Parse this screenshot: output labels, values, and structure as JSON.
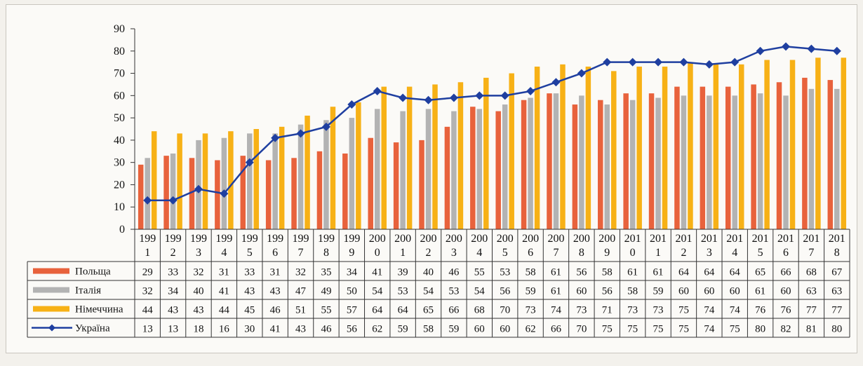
{
  "chart_data": {
    "type": "bar",
    "years": [
      "1991",
      "1992",
      "1993",
      "1994",
      "1995",
      "1996",
      "1997",
      "1998",
      "1999",
      "2000",
      "2001",
      "2002",
      "2003",
      "2004",
      "2005",
      "2006",
      "2007",
      "2008",
      "2009",
      "2010",
      "2011",
      "2012",
      "2013",
      "2014",
      "2015",
      "2016",
      "2017",
      "2018"
    ],
    "year_labels": [
      [
        "199",
        "1"
      ],
      [
        "199",
        "2"
      ],
      [
        "199",
        "3"
      ],
      [
        "199",
        "4"
      ],
      [
        "199",
        "5"
      ],
      [
        "199",
        "6"
      ],
      [
        "199",
        "7"
      ],
      [
        "199",
        "8"
      ],
      [
        "199",
        "9"
      ],
      [
        "200",
        "0"
      ],
      [
        "200",
        "1"
      ],
      [
        "200",
        "2"
      ],
      [
        "200",
        "3"
      ],
      [
        "200",
        "4"
      ],
      [
        "200",
        "5"
      ],
      [
        "200",
        "6"
      ],
      [
        "200",
        "7"
      ],
      [
        "200",
        "8"
      ],
      [
        "200",
        "9"
      ],
      [
        "201",
        "0"
      ],
      [
        "201",
        "1"
      ],
      [
        "201",
        "2"
      ],
      [
        "201",
        "3"
      ],
      [
        "201",
        "4"
      ],
      [
        "201",
        "5"
      ],
      [
        "201",
        "6"
      ],
      [
        "201",
        "7"
      ],
      [
        "201",
        "8"
      ]
    ],
    "ylim": [
      0,
      90
    ],
    "yticks": [
      "0",
      "10",
      "20",
      "30",
      "40",
      "50",
      "60",
      "70",
      "80",
      "90"
    ],
    "series": [
      {
        "name": "Польща",
        "type": "bar",
        "color": "#e8623c",
        "values": [
          29,
          33,
          32,
          31,
          33,
          31,
          32,
          35,
          34,
          41,
          39,
          40,
          46,
          55,
          53,
          58,
          61,
          56,
          58,
          61,
          61,
          64,
          64,
          64,
          65,
          66,
          68,
          67
        ]
      },
      {
        "name": "Італія",
        "type": "bar",
        "color": "#b3b3b3",
        "values": [
          32,
          34,
          40,
          41,
          43,
          43,
          47,
          49,
          50,
          54,
          53,
          54,
          53,
          54,
          56,
          59,
          61,
          60,
          56,
          58,
          59,
          60,
          60,
          60,
          61,
          60,
          63,
          63
        ]
      },
      {
        "name": "Німеччина",
        "type": "bar",
        "color": "#f7b116",
        "values": [
          44,
          43,
          43,
          44,
          45,
          46,
          51,
          55,
          57,
          64,
          64,
          65,
          66,
          68,
          70,
          73,
          74,
          73,
          71,
          73,
          73,
          75,
          74,
          74,
          76,
          76,
          77,
          77
        ]
      },
      {
        "name": "Україна",
        "type": "line",
        "color": "#1f3fa0",
        "values": [
          13,
          13,
          18,
          16,
          30,
          41,
          43,
          46,
          56,
          62,
          59,
          58,
          59,
          60,
          60,
          62,
          66,
          70,
          75,
          75,
          75,
          75,
          74,
          75,
          80,
          82,
          81,
          80
        ]
      }
    ]
  }
}
